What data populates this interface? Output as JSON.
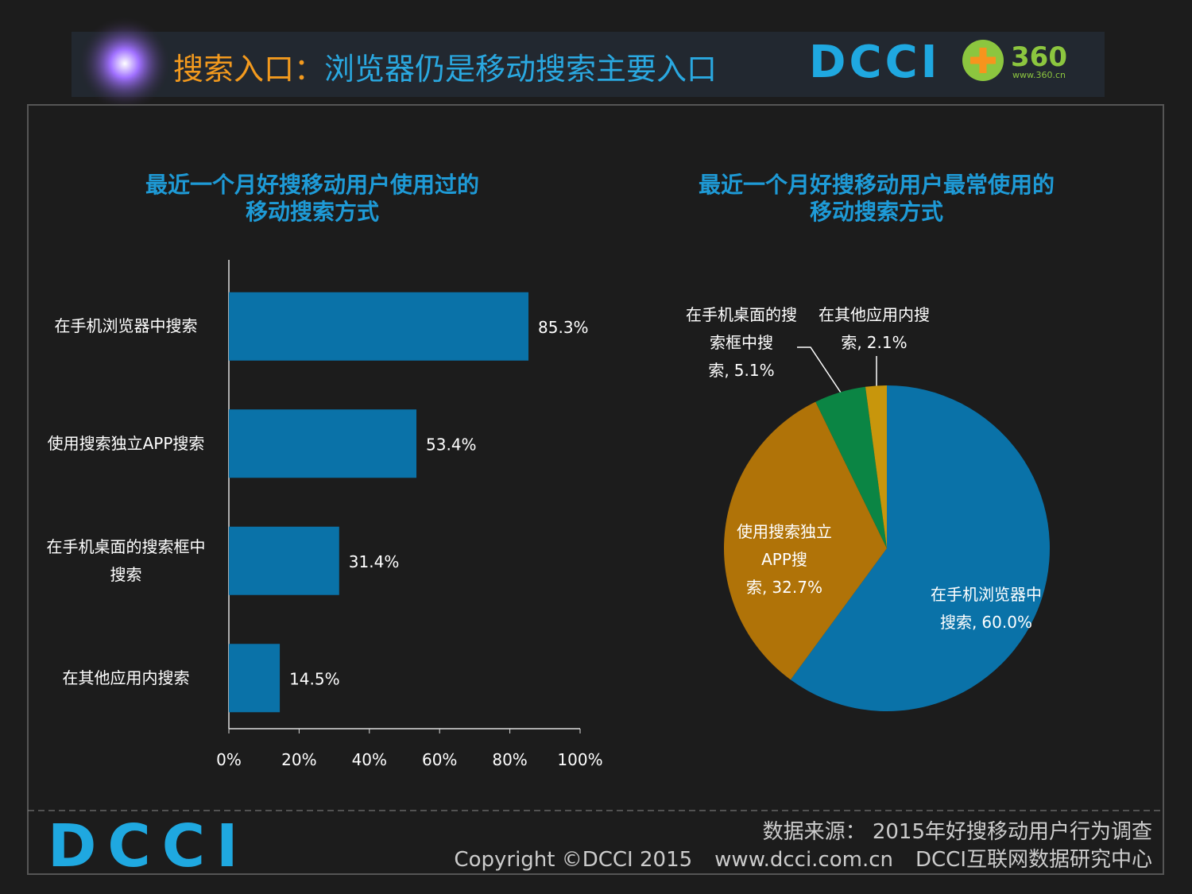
{
  "header": {
    "title_prefix": "搜索入口：",
    "title": "浏览器仍是移动搜索主要入口",
    "logo": "DCCI",
    "logo_360": "360",
    "logo_360_url": "www.360.cn"
  },
  "chart_data": [
    {
      "type": "bar",
      "orientation": "horizontal",
      "title": "最近一个月好搜移动用户使用过的\n移动搜索方式",
      "categories": [
        "在手机浏览器中搜索",
        "使用搜索独立APP搜索",
        "在手机桌面的搜索框中搜索",
        "在其他应用内搜索"
      ],
      "values": [
        85.3,
        53.4,
        31.4,
        14.5
      ],
      "value_labels": [
        "85.3%",
        "53.4%",
        "31.4%",
        "14.5%"
      ],
      "color": "#0a72a8",
      "xlim": [
        0,
        100
      ],
      "xticks": [
        {
          "value": 0,
          "label": "0%"
        },
        {
          "value": 20,
          "label": "20%"
        },
        {
          "value": 40,
          "label": "40%"
        },
        {
          "value": 60,
          "label": "60%"
        },
        {
          "value": 80,
          "label": "80%"
        },
        {
          "value": 100,
          "label": "100%"
        }
      ]
    },
    {
      "type": "pie",
      "title": "最近一个月好搜移动用户最常使用的\n移动搜索方式",
      "categories": [
        "在手机浏览器中搜索,",
        "使用搜索独立APP搜索,",
        "在手机桌面的搜索框中搜索,",
        "在其他应用内搜索,"
      ],
      "values": [
        60.0,
        32.7,
        5.1,
        2.1
      ],
      "value_labels": [
        "60.0%",
        "32.7%",
        "5.1%",
        "2.1%"
      ],
      "colors": [
        "#0a72a8",
        "#b07308",
        "#0b8544",
        "#c8960c"
      ]
    }
  ],
  "footer": {
    "logo": "DCCI",
    "source": "数据来源： 2015年好搜移动用户行为调查",
    "copyright": "Copyright ©DCCI 2015",
    "url": "www.dcci.com.cn",
    "org": "DCCI互联网数据研究中心"
  }
}
